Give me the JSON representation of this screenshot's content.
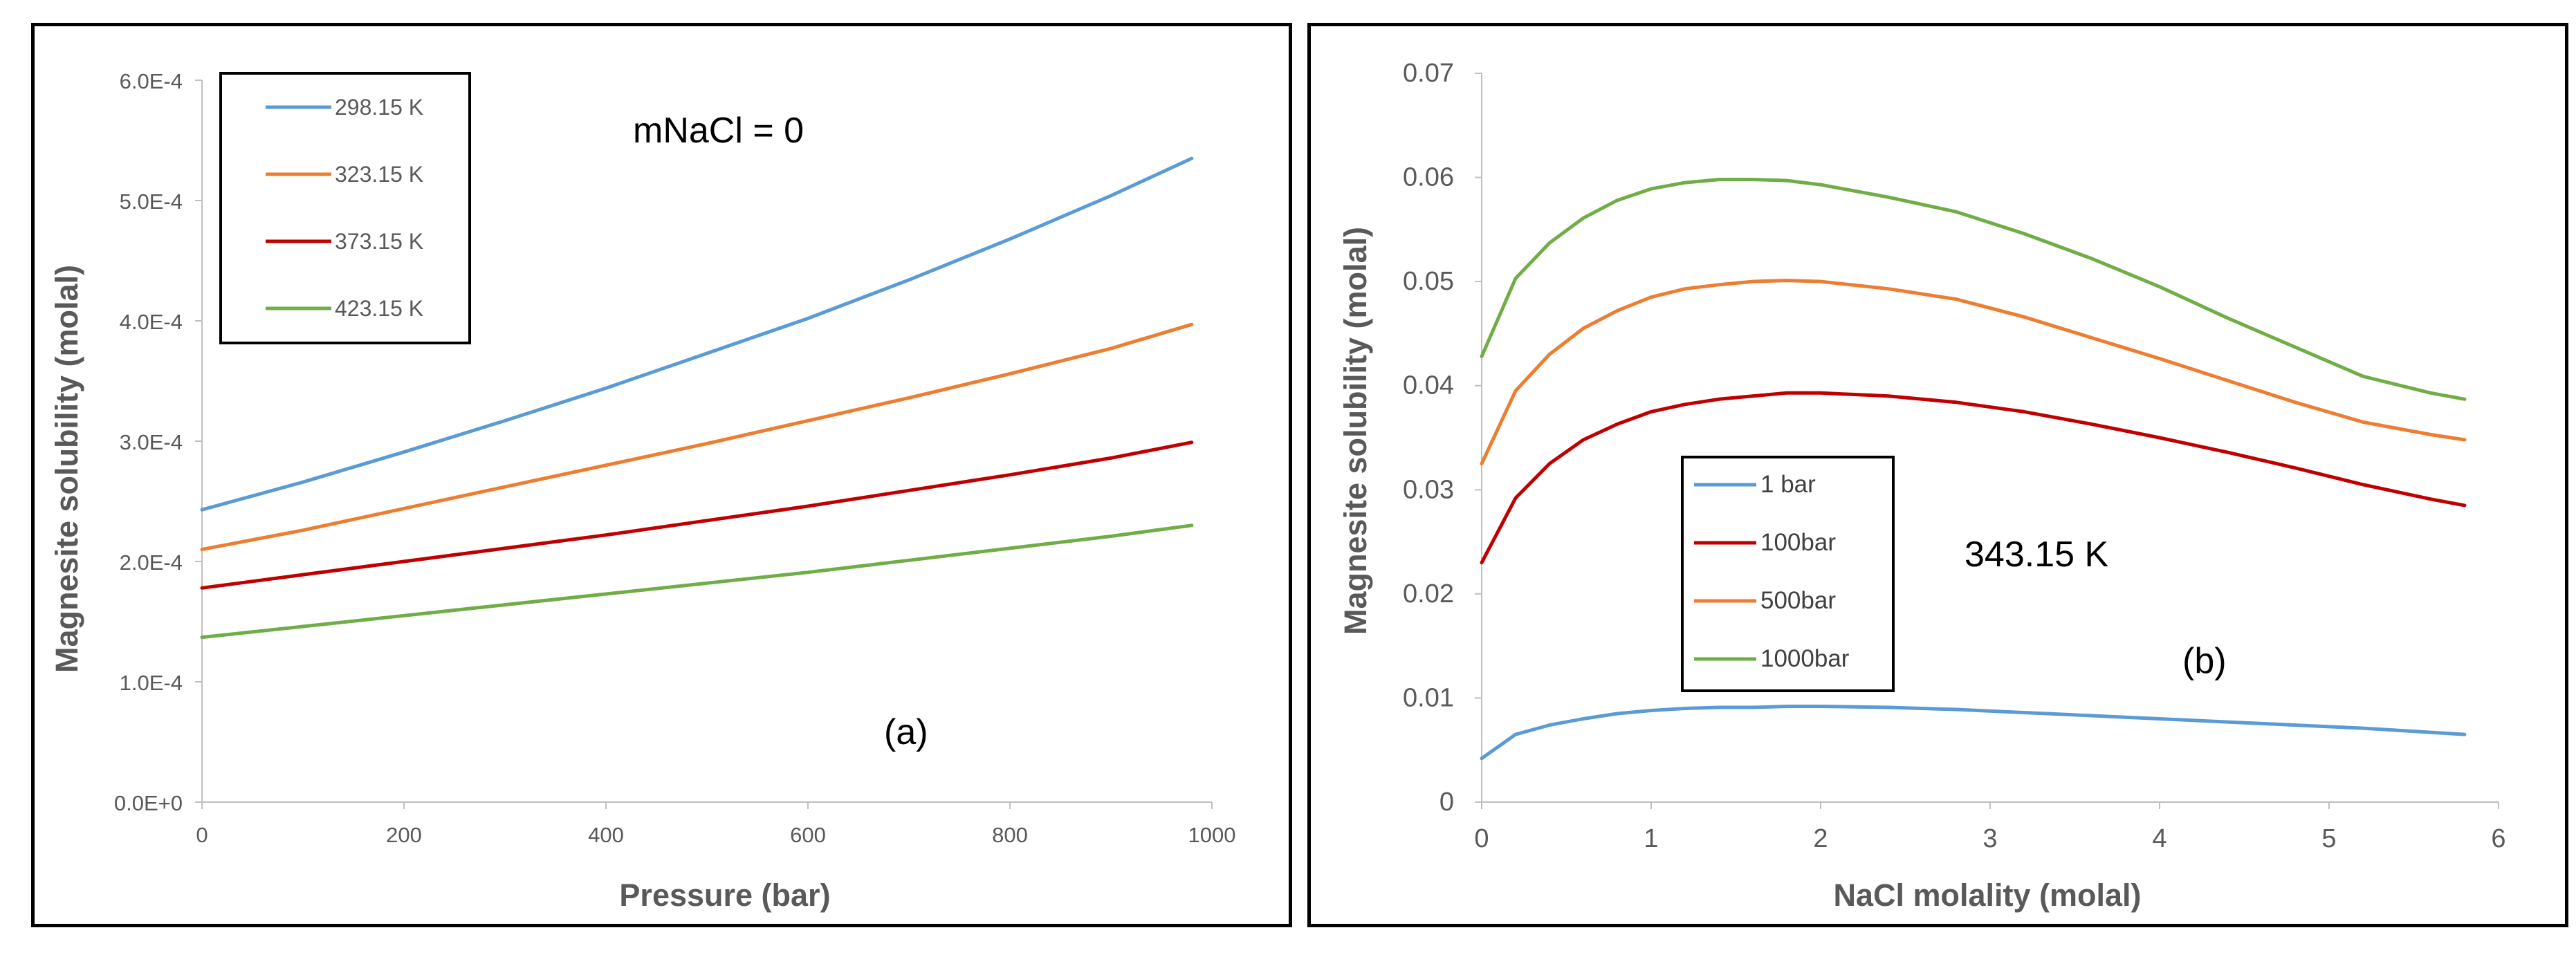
{
  "chart_data": [
    {
      "panel": "a",
      "type": "line",
      "title": "",
      "xlabel": "Pressure (bar)",
      "ylabel": "Magnesite solubility (molal)",
      "xlim": [
        0,
        1000
      ],
      "ylim": [
        0,
        0.0006
      ],
      "x_ticks": [
        0,
        200,
        400,
        600,
        800,
        1000
      ],
      "x_tick_labels": [
        "0",
        "200",
        "400",
        "600",
        "800",
        "1000"
      ],
      "y_ticks": [
        0,
        0.0001,
        0.0002,
        0.0003,
        0.0004,
        0.0005,
        0.0006
      ],
      "y_tick_labels": [
        "0.0E+0",
        "1.0E-4",
        "2.0E-4",
        "3.0E-4",
        "4.0E-4",
        "5.0E-4",
        "6.0E-4"
      ],
      "grid": false,
      "legend_position": "top-left",
      "annotations": [
        "mNaCl = 0",
        "(a)"
      ],
      "x": [
        0,
        100,
        200,
        300,
        400,
        500,
        600,
        700,
        800,
        900,
        980
      ],
      "series": [
        {
          "name": "298.15 K",
          "color": "#5B9BD5",
          "values": [
            0.000243,
            0.000266,
            0.000291,
            0.000317,
            0.000344,
            0.000373,
            0.000402,
            0.000434,
            0.000468,
            0.000504,
            0.000535
          ]
        },
        {
          "name": "323.15 K",
          "color": "#ED7D31",
          "values": [
            0.00021,
            0.000226,
            0.000244,
            0.000262,
            0.00028,
            0.000298,
            0.000317,
            0.000336,
            0.000356,
            0.000377,
            0.000397
          ]
        },
        {
          "name": "373.15 K",
          "color": "#C00000",
          "values": [
            0.000178,
            0.000189,
            0.0002,
            0.000211,
            0.000222,
            0.000234,
            0.000246,
            0.000259,
            0.000272,
            0.000286,
            0.000299
          ]
        },
        {
          "name": "423.15 K",
          "color": "#70AD47",
          "values": [
            0.000137,
            0.000146,
            0.000155,
            0.000164,
            0.000173,
            0.000182,
            0.000191,
            0.000201,
            0.000211,
            0.000221,
            0.00023
          ]
        }
      ]
    },
    {
      "panel": "b",
      "type": "line",
      "title": "",
      "xlabel": "NaCl molality (molal)",
      "ylabel": "Magnesite solubility (molal)",
      "xlim": [
        0,
        6
      ],
      "ylim": [
        0,
        0.07
      ],
      "x_ticks": [
        0,
        1,
        2,
        3,
        4,
        5,
        6
      ],
      "x_tick_labels": [
        "0",
        "1",
        "2",
        "3",
        "4",
        "5",
        "6"
      ],
      "y_ticks": [
        0,
        0.01,
        0.02,
        0.03,
        0.04,
        0.05,
        0.06,
        0.07
      ],
      "y_tick_labels": [
        "0",
        "0.01",
        "0.02",
        "0.03",
        "0.04",
        "0.05",
        "0.06",
        "0.07"
      ],
      "grid": false,
      "legend_position": "center-left",
      "annotations": [
        "343.15 K",
        "(b)"
      ],
      "x": [
        0,
        0.2,
        0.4,
        0.6,
        0.8,
        1.0,
        1.2,
        1.4,
        1.6,
        1.8,
        2.0,
        2.4,
        2.8,
        3.2,
        3.6,
        4.0,
        4.4,
        4.8,
        5.2,
        5.6,
        5.8
      ],
      "series": [
        {
          "name": "1 bar",
          "color": "#5B9BD5",
          "values": [
            0.0042,
            0.0065,
            0.0074,
            0.008,
            0.0085,
            0.0088,
            0.009,
            0.0091,
            0.0091,
            0.0092,
            0.0092,
            0.0091,
            0.0089,
            0.0086,
            0.0083,
            0.008,
            0.0077,
            0.0074,
            0.0071,
            0.0067,
            0.0065
          ]
        },
        {
          "name": "100bar",
          "color": "#C00000",
          "values": [
            0.023,
            0.0292,
            0.0325,
            0.0348,
            0.0363,
            0.0375,
            0.0382,
            0.0387,
            0.039,
            0.0393,
            0.0393,
            0.039,
            0.0384,
            0.0375,
            0.0363,
            0.035,
            0.0336,
            0.0321,
            0.0305,
            0.0291,
            0.0285
          ]
        },
        {
          "name": "500bar",
          "color": "#ED7D31",
          "values": [
            0.0325,
            0.0395,
            0.043,
            0.0455,
            0.0472,
            0.0485,
            0.0493,
            0.0497,
            0.05,
            0.0501,
            0.05,
            0.0493,
            0.0483,
            0.0466,
            0.0446,
            0.0426,
            0.0405,
            0.0384,
            0.0365,
            0.0353,
            0.0348
          ]
        },
        {
          "name": "1000bar",
          "color": "#70AD47",
          "values": [
            0.0428,
            0.0503,
            0.0537,
            0.0561,
            0.0578,
            0.0589,
            0.0595,
            0.0598,
            0.0598,
            0.0597,
            0.0593,
            0.0581,
            0.0567,
            0.0546,
            0.0522,
            0.0495,
            0.0465,
            0.0437,
            0.0409,
            0.0393,
            0.0387
          ]
        }
      ]
    }
  ]
}
